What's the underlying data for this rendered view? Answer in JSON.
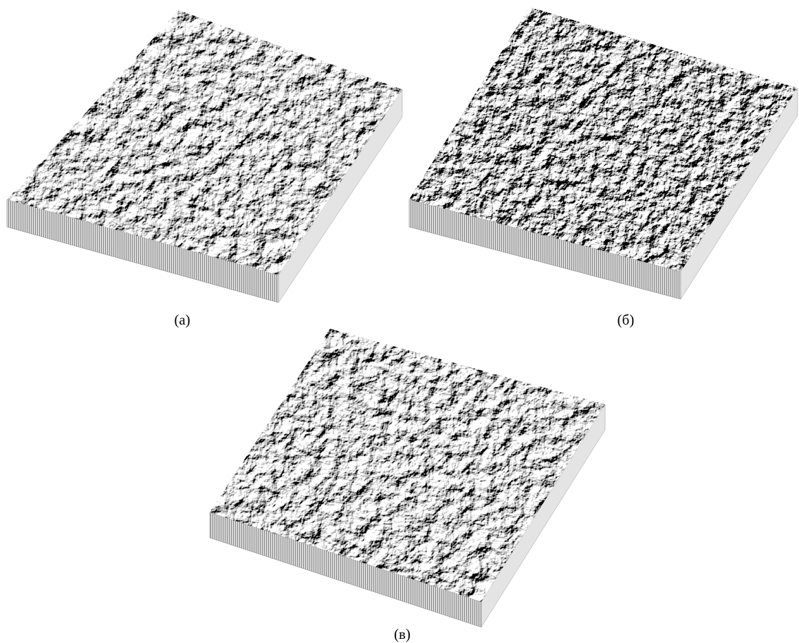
{
  "panels": [
    {
      "label": "(а)"
    },
    {
      "label": "(б)"
    },
    {
      "label": "(в)"
    }
  ]
}
